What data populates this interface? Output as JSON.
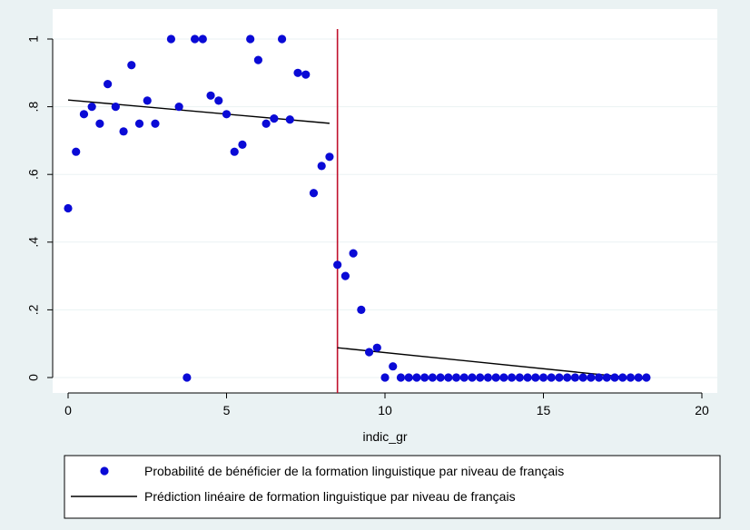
{
  "chart_data": {
    "type": "scatter",
    "xlabel": "indic_gr",
    "ylabel": "",
    "xlim": [
      0,
      20
    ],
    "ylim": [
      0,
      1
    ],
    "x_ticks": [
      0,
      5,
      10,
      15,
      20
    ],
    "x_tick_labels": [
      "0",
      "5",
      "10",
      "15",
      "20"
    ],
    "y_ticks": [
      0,
      0.2,
      0.4,
      0.6,
      0.8,
      1
    ],
    "y_tick_labels": [
      "0",
      ".2",
      ".4",
      ".6",
      ".8",
      "1"
    ],
    "grid": "horizontal",
    "cutoff_line": {
      "x": 8.5,
      "color": "#c0102c"
    },
    "legend_position": "bottom",
    "colors": {
      "background": "#eaf2f3",
      "plot_area": "#ffffff",
      "points": "#0a0ad6",
      "fit_line": "#000000",
      "grid": "#eaf2f3"
    },
    "series": [
      {
        "name": "Probabilité de bénéficier de la formation linguistique par niveau de français",
        "kind": "scatter",
        "x": [
          0,
          0.25,
          0.5,
          0.75,
          1,
          1.25,
          1.5,
          1.75,
          2,
          2.25,
          2.5,
          2.75,
          3.25,
          3.5,
          3.75,
          4,
          4.25,
          4.5,
          4.75,
          5,
          5.25,
          5.5,
          5.75,
          6,
          6.25,
          6.5,
          6.75,
          7,
          7.25,
          7.5,
          7.75,
          8,
          8.25,
          8.5,
          8.75,
          9,
          9.25,
          9.5,
          9.75,
          10,
          10.25,
          10.5,
          10.75,
          11,
          11.25,
          11.5,
          11.75,
          12,
          12.25,
          12.5,
          12.75,
          13,
          13.25,
          13.5,
          13.75,
          14,
          14.25,
          14.5,
          14.75,
          15,
          15.25,
          15.5,
          15.75,
          16,
          16.25,
          16.5,
          16.75,
          17,
          17.25,
          17.5,
          17.75,
          18,
          18.25
        ],
        "y": [
          0.5,
          0.667,
          0.778,
          0.8,
          0.75,
          0.867,
          0.8,
          0.727,
          0.923,
          0.75,
          0.818,
          0.75,
          1,
          0.8,
          0,
          1,
          1,
          0.833,
          0.818,
          0.778,
          0.667,
          0.688,
          1,
          0.938,
          0.75,
          0.765,
          1,
          0.762,
          0.9,
          0.895,
          0.545,
          0.625,
          0.652,
          0.333,
          0.3,
          0.367,
          0.2,
          0.075,
          0.088,
          0,
          0.033,
          0,
          0,
          0,
          0,
          0,
          0,
          0,
          0,
          0,
          0,
          0,
          0,
          0,
          0,
          0,
          0,
          0,
          0,
          0,
          0,
          0,
          0,
          0,
          0,
          0,
          0,
          0,
          0,
          0,
          0,
          0,
          0
        ]
      },
      {
        "name": "Prédiction linéaire de formation linguistique par niveau de français",
        "kind": "line",
        "segments": [
          {
            "x": [
              0,
              8.25
            ],
            "y": [
              0.82,
              0.751
            ]
          },
          {
            "x": [
              8.5,
              18.25
            ],
            "y": [
              0.088,
              -0.005
            ]
          }
        ]
      }
    ]
  }
}
